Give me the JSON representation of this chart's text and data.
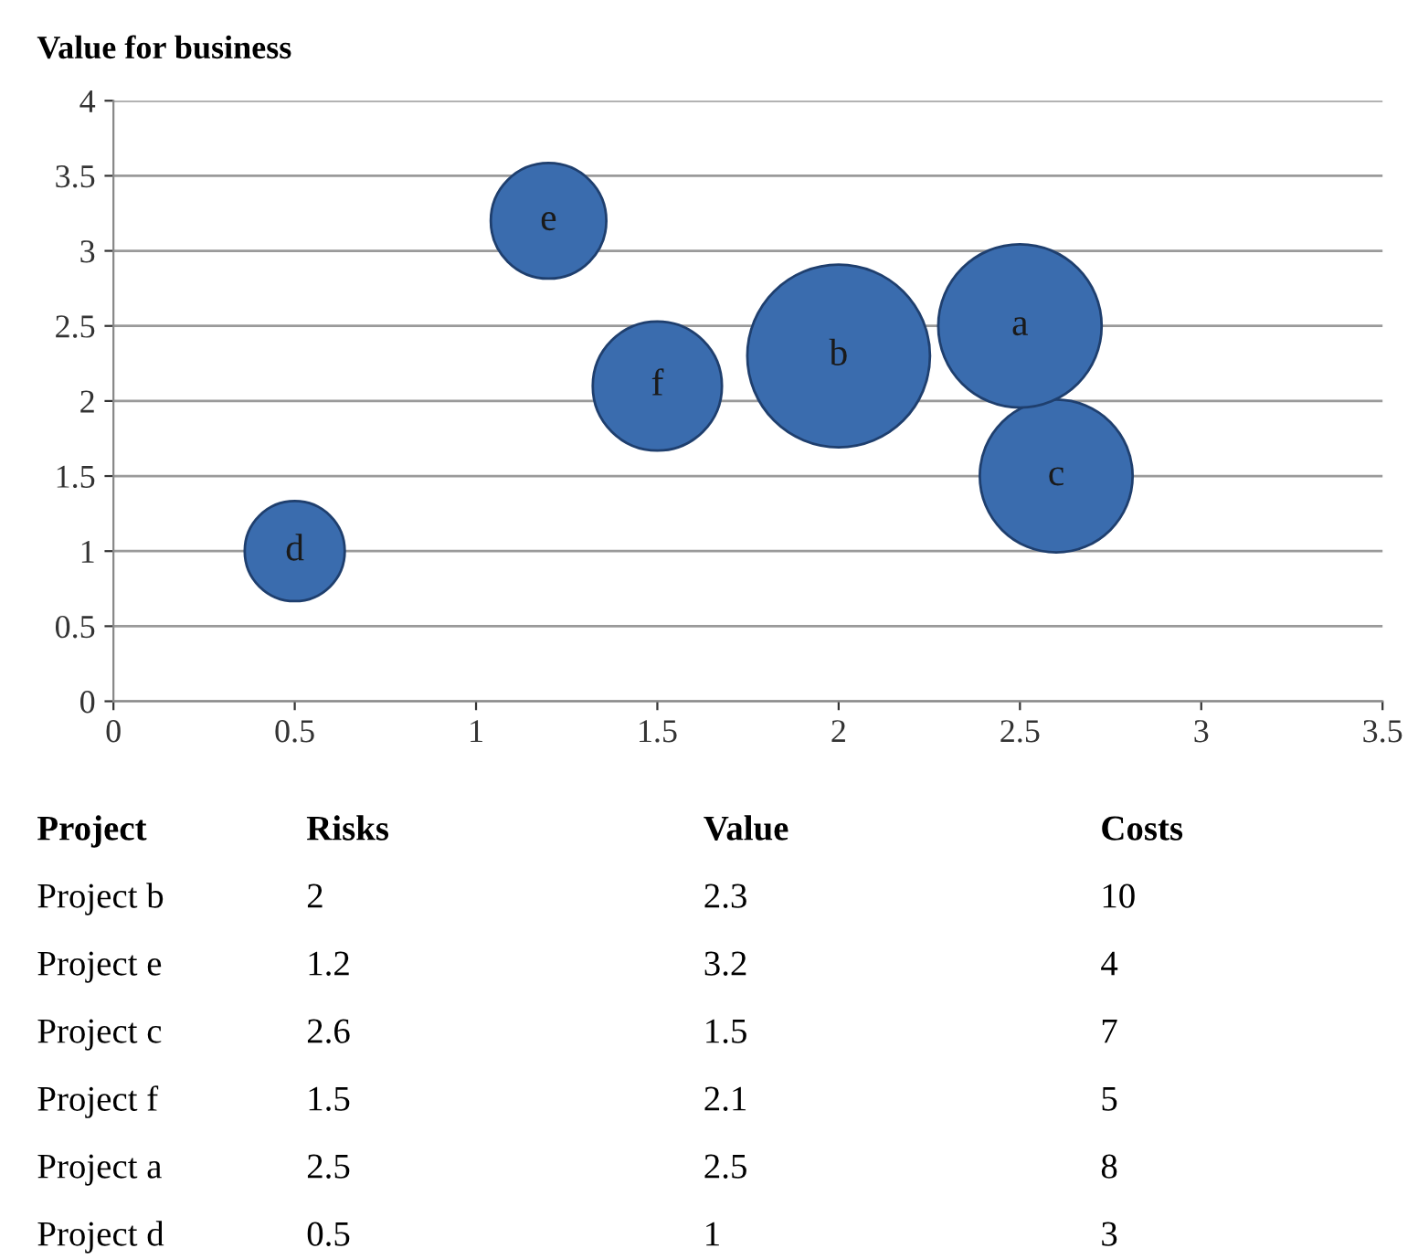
{
  "chart_data": {
    "type": "bubble",
    "ylabel": "Value for business",
    "x": [
      2,
      1.2,
      2.6,
      1.5,
      2.5,
      0.5
    ],
    "values": [
      2.3,
      3.2,
      1.5,
      2.1,
      2.5,
      1
    ],
    "sizes": [
      1,
      0.4,
      0.7,
      0.5,
      0.8,
      0.3
    ],
    "color": "#3a6cae",
    "xlim": [
      0,
      3.5
    ],
    "xticks": [
      0,
      0.5,
      1,
      1.5,
      2,
      2.5,
      3,
      3.5
    ],
    "ylim": [
      0,
      4
    ],
    "yticks": [
      0,
      0.5,
      1,
      1.5,
      2,
      2.5,
      3,
      3.5,
      4
    ],
    "grid": "y",
    "annotations": [
      {
        "text": "b",
        "x": 2,
        "y": 2.3
      },
      {
        "text": "e",
        "x": 1.2,
        "y": 3.2
      },
      {
        "text": "c",
        "x": 2.6,
        "y": 1.5
      },
      {
        "text": "f",
        "x": 1.5,
        "y": 2.1
      },
      {
        "text": "a",
        "x": 2.5,
        "y": 2.5
      },
      {
        "text": "d",
        "x": 0.5,
        "y": 1
      },
      "Project",
      "Risks",
      "Value",
      "Costs",
      "Project b",
      "2",
      "2.3",
      "10",
      "Project e",
      "1.2",
      "3.2",
      "4",
      "Project c",
      "2.6",
      "1.5",
      "7",
      "Project f",
      "1.5",
      "2.1",
      "5",
      "Project a",
      "2.5",
      "2.5",
      "8",
      "Project d",
      "0.5",
      "1",
      "3"
    ]
  }
}
